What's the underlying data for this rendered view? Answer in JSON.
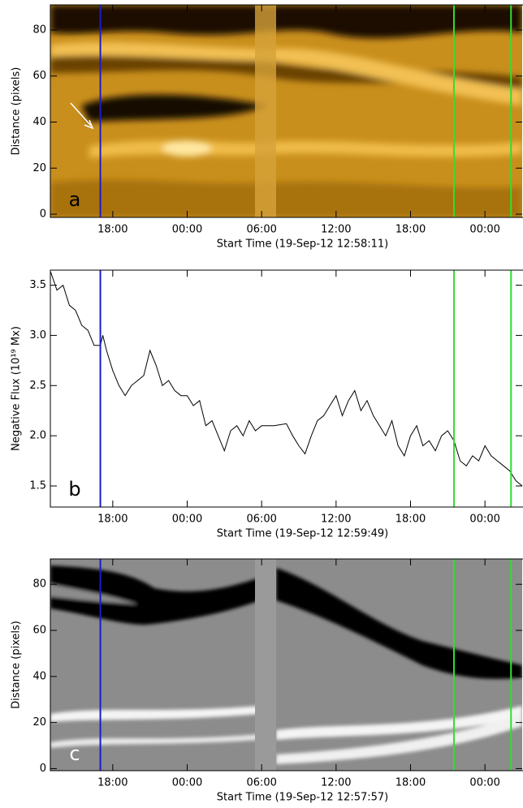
{
  "chart_data": [
    {
      "type": "image",
      "panel_label": "a",
      "ylabel": "Distance (pixels)",
      "xlabel": "Start Time (19-Sep-12 12:58:11)",
      "xlim": [
        12.97,
        51
      ],
      "xticks": [
        {
          "value": 18,
          "label": "18:00"
        },
        {
          "value": 24,
          "label": "00:00"
        },
        {
          "value": 30,
          "label": "06:00"
        },
        {
          "value": 36,
          "label": "12:00"
        },
        {
          "value": 42,
          "label": "18:00"
        },
        {
          "value": 48,
          "label": "00:00"
        }
      ],
      "ylim": [
        -1.4,
        90.9
      ],
      "yticks": [
        0,
        20,
        40,
        60,
        80
      ],
      "vlines": [
        {
          "x": 17.0,
          "color": "#1c1cc8"
        },
        {
          "x": 45.5,
          "color": "#2ee02e"
        },
        {
          "x": 50.1,
          "color": "#2ee02e"
        }
      ]
    },
    {
      "type": "line",
      "panel_label": "b",
      "ylabel": "Negative Flux (10¹⁹ Mx)",
      "xlabel": "Start Time (19-Sep-12 12:59:49)",
      "xlim": [
        12.97,
        51
      ],
      "xticks": [
        {
          "value": 18,
          "label": "18:00"
        },
        {
          "value": 24,
          "label": "00:00"
        },
        {
          "value": 30,
          "label": "06:00"
        },
        {
          "value": 36,
          "label": "12:00"
        },
        {
          "value": 42,
          "label": "18:00"
        },
        {
          "value": 48,
          "label": "00:00"
        }
      ],
      "ylim": [
        1.29,
        3.65
      ],
      "yticks": [
        {
          "value": 1.5,
          "label": "1.5"
        },
        {
          "value": 2,
          "label": "2.0"
        },
        {
          "value": 2.5,
          "label": "2.5"
        },
        {
          "value": 3,
          "label": "3.0"
        },
        {
          "value": 3.5,
          "label": "3.5"
        }
      ],
      "color": "#000000",
      "x": [
        13.0,
        13.5,
        14.0,
        14.5,
        15.0,
        15.5,
        16.0,
        16.5,
        17.0,
        17.2,
        17.5,
        18.0,
        18.5,
        19.0,
        19.5,
        20.0,
        20.5,
        21.0,
        21.5,
        22.0,
        22.5,
        23.0,
        23.5,
        24.0,
        24.5,
        25.0,
        25.5,
        26.0,
        26.5,
        27.0,
        27.5,
        28.0,
        28.5,
        29.0,
        29.5,
        30.0,
        31.0,
        32.0,
        32.5,
        33.0,
        33.5,
        34.0,
        34.5,
        35.0,
        35.5,
        36.0,
        36.5,
        37.0,
        37.5,
        38.0,
        38.5,
        39.0,
        39.5,
        40.0,
        40.5,
        41.0,
        41.5,
        42.0,
        42.5,
        43.0,
        43.5,
        44.0,
        44.5,
        45.0,
        45.5,
        46.0,
        46.5,
        47.0,
        47.5,
        48.0,
        48.5,
        49.0,
        49.5,
        50.0,
        50.5,
        51.0
      ],
      "values": [
        3.63,
        3.45,
        3.5,
        3.3,
        3.25,
        3.1,
        3.05,
        2.9,
        2.9,
        3.0,
        2.85,
        2.65,
        2.5,
        2.4,
        2.5,
        2.55,
        2.6,
        2.85,
        2.7,
        2.5,
        2.55,
        2.45,
        2.4,
        2.4,
        2.3,
        2.35,
        2.1,
        2.15,
        2.0,
        1.85,
        2.05,
        2.1,
        2.0,
        2.15,
        2.05,
        2.1,
        2.1,
        2.12,
        2.0,
        1.9,
        1.82,
        2.0,
        2.15,
        2.2,
        2.3,
        2.4,
        2.2,
        2.35,
        2.45,
        2.25,
        2.35,
        2.2,
        2.1,
        2.0,
        2.15,
        1.9,
        1.8,
        2.0,
        2.1,
        1.9,
        1.95,
        1.85,
        2.0,
        2.05,
        1.95,
        1.75,
        1.7,
        1.8,
        1.75,
        1.9,
        1.8,
        1.75,
        1.7,
        1.65,
        1.55,
        1.5
      ],
      "vlines": [
        {
          "x": 17.0,
          "color": "#1c1cc8"
        },
        {
          "x": 45.5,
          "color": "#2ee02e"
        },
        {
          "x": 50.1,
          "color": "#2ee02e"
        }
      ]
    },
    {
      "type": "image",
      "panel_label": "c",
      "ylabel": "Distance (pixels)",
      "xlabel": "Start Time (19-Sep-12 12:57:57)",
      "xlim": [
        12.97,
        51
      ],
      "xticks": [
        {
          "value": 18,
          "label": "18:00"
        },
        {
          "value": 24,
          "label": "00:00"
        },
        {
          "value": 30,
          "label": "06:00"
        },
        {
          "value": 36,
          "label": "12:00"
        },
        {
          "value": 42,
          "label": "18:00"
        },
        {
          "value": 48,
          "label": "00:00"
        }
      ],
      "ylim": [
        -0.9,
        91
      ],
      "yticks": [
        0,
        20,
        40,
        60,
        80
      ],
      "vlines": [
        {
          "x": 17.0,
          "color": "#1c1cc8"
        },
        {
          "x": 45.5,
          "color": "#2ee02e"
        },
        {
          "x": 50.1,
          "color": "#2ee02e"
        }
      ]
    }
  ]
}
